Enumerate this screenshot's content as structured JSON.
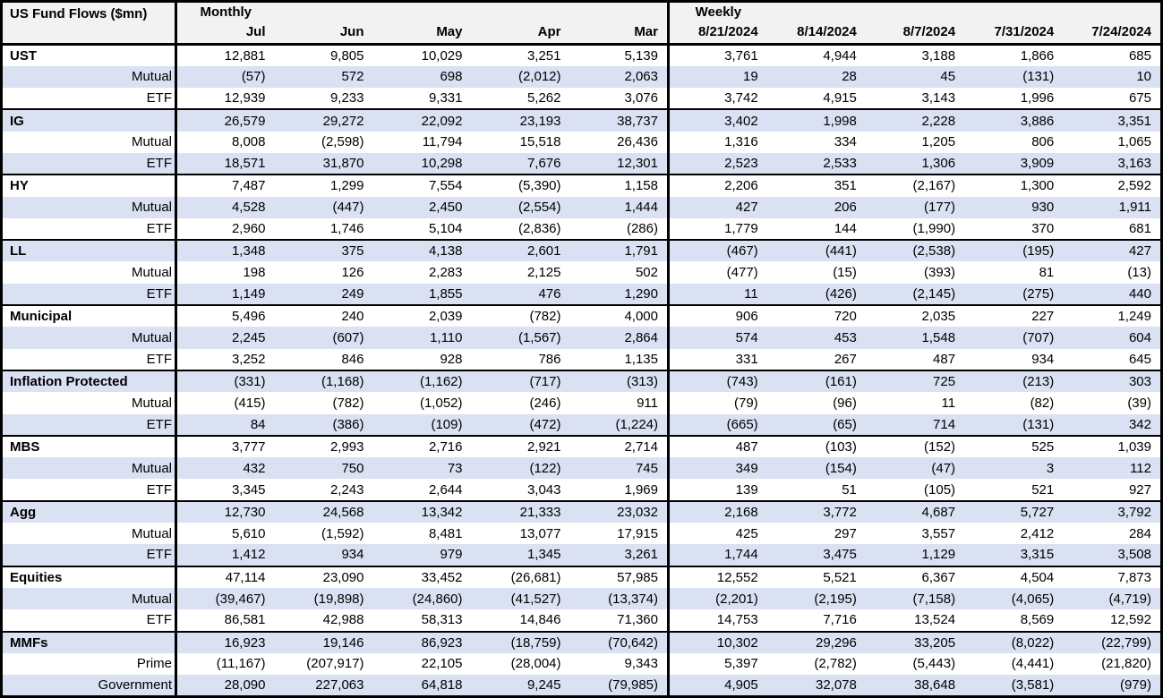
{
  "colors": {
    "stripe": "#D9E1F2",
    "header_bg": "#F2F2F2",
    "border": "#000000",
    "text": "#000000"
  },
  "chart_data": {
    "type": "table",
    "title": "US Fund Flows ($mn)",
    "section_headers": {
      "monthly": "Monthly",
      "weekly": "Weekly"
    },
    "monthly_columns": [
      "Jul",
      "Jun",
      "May",
      "Apr",
      "Mar"
    ],
    "weekly_columns": [
      "8/21/2024",
      "8/14/2024",
      "8/7/2024",
      "7/31/2024",
      "7/24/2024"
    ],
    "groups": [
      {
        "rows": [
          {
            "label": "UST",
            "is_category": true,
            "monthly": [
              "12,881",
              "9,805",
              "10,029",
              "3,251",
              "5,139"
            ],
            "weekly": [
              "3,761",
              "4,944",
              "3,188",
              "1,866",
              "685"
            ]
          },
          {
            "label": "Mutual",
            "is_category": false,
            "monthly": [
              "(57)",
              "572",
              "698",
              "(2,012)",
              "2,063"
            ],
            "weekly": [
              "19",
              "28",
              "45",
              "(131)",
              "10"
            ]
          },
          {
            "label": "ETF",
            "is_category": false,
            "monthly": [
              "12,939",
              "9,233",
              "9,331",
              "5,262",
              "3,076"
            ],
            "weekly": [
              "3,742",
              "4,915",
              "3,143",
              "1,996",
              "675"
            ]
          }
        ]
      },
      {
        "rows": [
          {
            "label": "IG",
            "is_category": true,
            "monthly": [
              "26,579",
              "29,272",
              "22,092",
              "23,193",
              "38,737"
            ],
            "weekly": [
              "3,402",
              "1,998",
              "2,228",
              "3,886",
              "3,351"
            ]
          },
          {
            "label": "Mutual",
            "is_category": false,
            "monthly": [
              "8,008",
              "(2,598)",
              "11,794",
              "15,518",
              "26,436"
            ],
            "weekly": [
              "1,316",
              "334",
              "1,205",
              "806",
              "1,065"
            ]
          },
          {
            "label": "ETF",
            "is_category": false,
            "monthly": [
              "18,571",
              "31,870",
              "10,298",
              "7,676",
              "12,301"
            ],
            "weekly": [
              "2,523",
              "2,533",
              "1,306",
              "3,909",
              "3,163"
            ]
          }
        ]
      },
      {
        "rows": [
          {
            "label": "HY",
            "is_category": true,
            "monthly": [
              "7,487",
              "1,299",
              "7,554",
              "(5,390)",
              "1,158"
            ],
            "weekly": [
              "2,206",
              "351",
              "(2,167)",
              "1,300",
              "2,592"
            ]
          },
          {
            "label": "Mutual",
            "is_category": false,
            "monthly": [
              "4,528",
              "(447)",
              "2,450",
              "(2,554)",
              "1,444"
            ],
            "weekly": [
              "427",
              "206",
              "(177)",
              "930",
              "1,911"
            ]
          },
          {
            "label": "ETF",
            "is_category": false,
            "monthly": [
              "2,960",
              "1,746",
              "5,104",
              "(2,836)",
              "(286)"
            ],
            "weekly": [
              "1,779",
              "144",
              "(1,990)",
              "370",
              "681"
            ]
          }
        ]
      },
      {
        "rows": [
          {
            "label": "LL",
            "is_category": true,
            "monthly": [
              "1,348",
              "375",
              "4,138",
              "2,601",
              "1,791"
            ],
            "weekly": [
              "(467)",
              "(441)",
              "(2,538)",
              "(195)",
              "427"
            ]
          },
          {
            "label": "Mutual",
            "is_category": false,
            "monthly": [
              "198",
              "126",
              "2,283",
              "2,125",
              "502"
            ],
            "weekly": [
              "(477)",
              "(15)",
              "(393)",
              "81",
              "(13)"
            ]
          },
          {
            "label": "ETF",
            "is_category": false,
            "monthly": [
              "1,149",
              "249",
              "1,855",
              "476",
              "1,290"
            ],
            "weekly": [
              "11",
              "(426)",
              "(2,145)",
              "(275)",
              "440"
            ]
          }
        ]
      },
      {
        "rows": [
          {
            "label": "Municipal",
            "is_category": true,
            "monthly": [
              "5,496",
              "240",
              "2,039",
              "(782)",
              "4,000"
            ],
            "weekly": [
              "906",
              "720",
              "2,035",
              "227",
              "1,249"
            ]
          },
          {
            "label": "Mutual",
            "is_category": false,
            "monthly": [
              "2,245",
              "(607)",
              "1,110",
              "(1,567)",
              "2,864"
            ],
            "weekly": [
              "574",
              "453",
              "1,548",
              "(707)",
              "604"
            ]
          },
          {
            "label": "ETF",
            "is_category": false,
            "monthly": [
              "3,252",
              "846",
              "928",
              "786",
              "1,135"
            ],
            "weekly": [
              "331",
              "267",
              "487",
              "934",
              "645"
            ]
          }
        ]
      },
      {
        "rows": [
          {
            "label": "Inflation Protected",
            "is_category": true,
            "monthly": [
              "(331)",
              "(1,168)",
              "(1,162)",
              "(717)",
              "(313)"
            ],
            "weekly": [
              "(743)",
              "(161)",
              "725",
              "(213)",
              "303"
            ]
          },
          {
            "label": "Mutual",
            "is_category": false,
            "monthly": [
              "(415)",
              "(782)",
              "(1,052)",
              "(246)",
              "911"
            ],
            "weekly": [
              "(79)",
              "(96)",
              "11",
              "(82)",
              "(39)"
            ]
          },
          {
            "label": "ETF",
            "is_category": false,
            "monthly": [
              "84",
              "(386)",
              "(109)",
              "(472)",
              "(1,224)"
            ],
            "weekly": [
              "(665)",
              "(65)",
              "714",
              "(131)",
              "342"
            ]
          }
        ]
      },
      {
        "rows": [
          {
            "label": "MBS",
            "is_category": true,
            "monthly": [
              "3,777",
              "2,993",
              "2,716",
              "2,921",
              "2,714"
            ],
            "weekly": [
              "487",
              "(103)",
              "(152)",
              "525",
              "1,039"
            ]
          },
          {
            "label": "Mutual",
            "is_category": false,
            "monthly": [
              "432",
              "750",
              "73",
              "(122)",
              "745"
            ],
            "weekly": [
              "349",
              "(154)",
              "(47)",
              "3",
              "112"
            ]
          },
          {
            "label": "ETF",
            "is_category": false,
            "monthly": [
              "3,345",
              "2,243",
              "2,644",
              "3,043",
              "1,969"
            ],
            "weekly": [
              "139",
              "51",
              "(105)",
              "521",
              "927"
            ]
          }
        ]
      },
      {
        "rows": [
          {
            "label": "Agg",
            "is_category": true,
            "monthly": [
              "12,730",
              "24,568",
              "13,342",
              "21,333",
              "23,032"
            ],
            "weekly": [
              "2,168",
              "3,772",
              "4,687",
              "5,727",
              "3,792"
            ]
          },
          {
            "label": "Mutual",
            "is_category": false,
            "monthly": [
              "5,610",
              "(1,592)",
              "8,481",
              "13,077",
              "17,915"
            ],
            "weekly": [
              "425",
              "297",
              "3,557",
              "2,412",
              "284"
            ]
          },
          {
            "label": "ETF",
            "is_category": false,
            "monthly": [
              "1,412",
              "934",
              "979",
              "1,345",
              "3,261"
            ],
            "weekly": [
              "1,744",
              "3,475",
              "1,129",
              "3,315",
              "3,508"
            ]
          }
        ]
      },
      {
        "rows": [
          {
            "label": "Equities",
            "is_category": true,
            "monthly": [
              "47,114",
              "23,090",
              "33,452",
              "(26,681)",
              "57,985"
            ],
            "weekly": [
              "12,552",
              "5,521",
              "6,367",
              "4,504",
              "7,873"
            ]
          },
          {
            "label": "Mutual",
            "is_category": false,
            "monthly": [
              "(39,467)",
              "(19,898)",
              "(24,860)",
              "(41,527)",
              "(13,374)"
            ],
            "weekly": [
              "(2,201)",
              "(2,195)",
              "(7,158)",
              "(4,065)",
              "(4,719)"
            ]
          },
          {
            "label": "ETF",
            "is_category": false,
            "monthly": [
              "86,581",
              "42,988",
              "58,313",
              "14,846",
              "71,360"
            ],
            "weekly": [
              "14,753",
              "7,716",
              "13,524",
              "8,569",
              "12,592"
            ]
          }
        ]
      },
      {
        "rows": [
          {
            "label": "MMFs",
            "is_category": true,
            "monthly": [
              "16,923",
              "19,146",
              "86,923",
              "(18,759)",
              "(70,642)"
            ],
            "weekly": [
              "10,302",
              "29,296",
              "33,205",
              "(8,022)",
              "(22,799)"
            ]
          },
          {
            "label": "Prime",
            "is_category": false,
            "monthly": [
              "(11,167)",
              "(207,917)",
              "22,105",
              "(28,004)",
              "9,343"
            ],
            "weekly": [
              "5,397",
              "(2,782)",
              "(5,443)",
              "(4,441)",
              "(21,820)"
            ]
          },
          {
            "label": "Government",
            "is_category": false,
            "monthly": [
              "28,090",
              "227,063",
              "64,818",
              "9,245",
              "(79,985)"
            ],
            "weekly": [
              "4,905",
              "32,078",
              "38,648",
              "(3,581)",
              "(979)"
            ]
          }
        ]
      }
    ]
  }
}
